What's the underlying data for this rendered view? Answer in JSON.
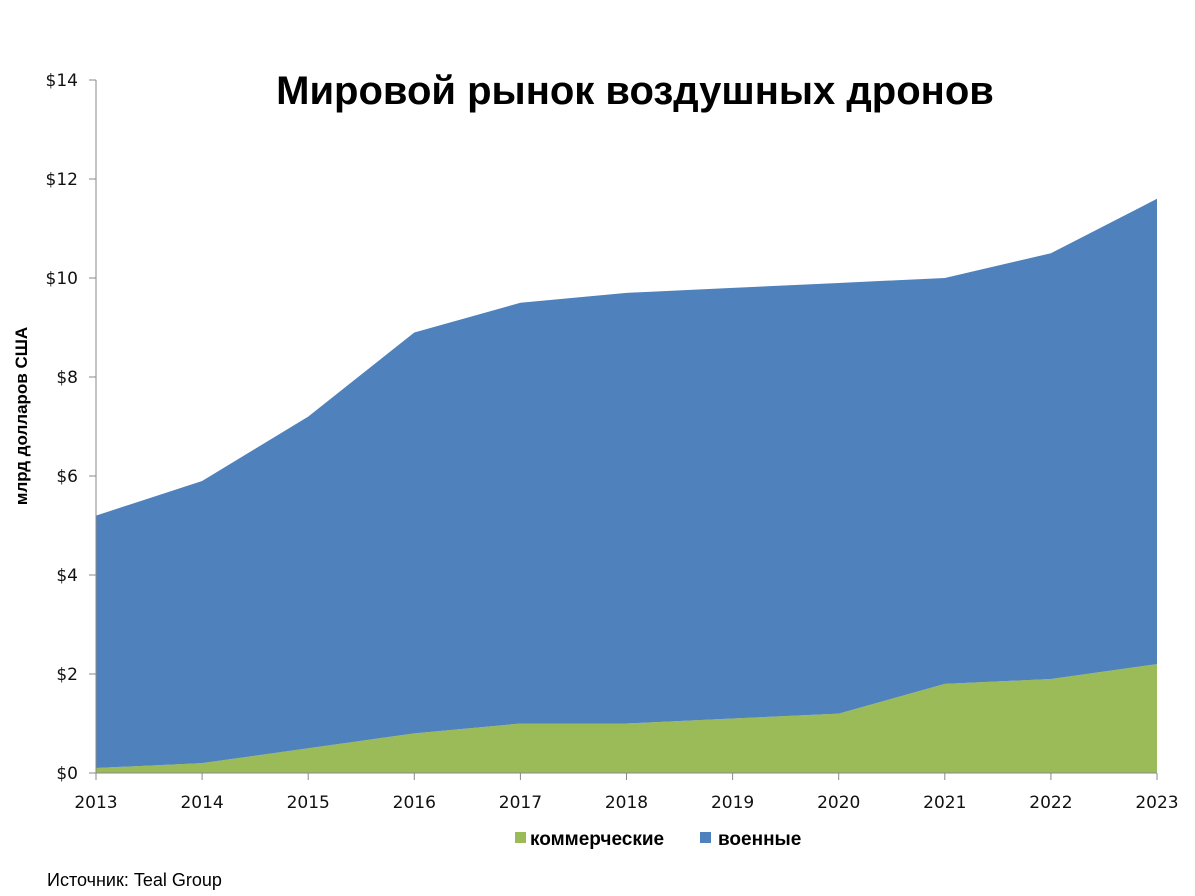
{
  "chart_data": {
    "type": "area",
    "stacked": true,
    "title": "Мировой рынок воздушных дронов",
    "xlabel": "",
    "ylabel": "млрд долларов США",
    "x": [
      2013,
      2014,
      2015,
      2016,
      2017,
      2018,
      2019,
      2020,
      2021,
      2022,
      2023
    ],
    "ylim": [
      0,
      14
    ],
    "yticks": [
      0,
      2,
      4,
      6,
      8,
      10,
      12,
      14
    ],
    "ytick_labels": [
      "$0",
      "$2",
      "$4",
      "$6",
      "$8",
      "$10",
      "$12",
      "$14"
    ],
    "grid": false,
    "legend_position": "bottom",
    "series": [
      {
        "name": "коммерческие",
        "color": "#9bbb59",
        "values": [
          0.1,
          0.2,
          0.5,
          0.8,
          1.0,
          1.0,
          1.1,
          1.2,
          1.8,
          1.9,
          2.2
        ]
      },
      {
        "name": "военные",
        "color": "#4f81bd",
        "values": [
          5.1,
          5.7,
          6.7,
          8.1,
          8.5,
          8.7,
          8.7,
          8.7,
          8.2,
          8.6,
          9.4
        ]
      }
    ],
    "source": "Источник: Teal Group"
  }
}
